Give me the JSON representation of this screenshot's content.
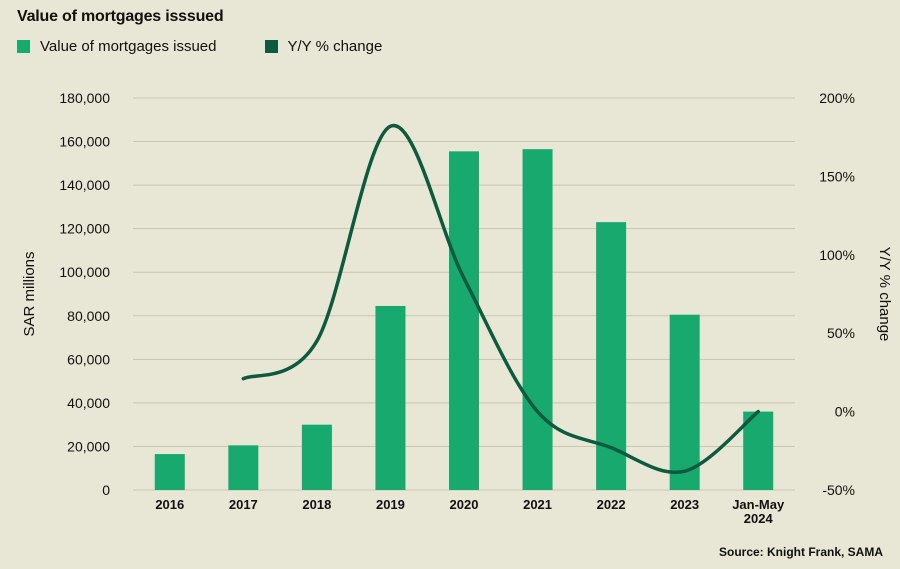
{
  "header": {
    "title": "Value of mortgages isssued"
  },
  "legend": [
    {
      "label": "Value of mortgages issued",
      "color": "#18a96e"
    },
    {
      "label": "Y/Y % change",
      "color": "#0e5a3f"
    }
  ],
  "source": "Source: Knight Frank, SAMA",
  "chart_data": {
    "type": "bar+line",
    "title": "Value of mortgages isssued",
    "categories": [
      "2016",
      "2017",
      "2018",
      "2019",
      "2020",
      "2021",
      "2022",
      "2023",
      "Jan-May 2024"
    ],
    "category_lines": [
      [
        "2016"
      ],
      [
        "2017"
      ],
      [
        "2018"
      ],
      [
        "2019"
      ],
      [
        "2020"
      ],
      [
        "2021"
      ],
      [
        "2022"
      ],
      [
        "2023"
      ],
      [
        "Jan-May",
        "2024"
      ]
    ],
    "series": [
      {
        "name": "Value of mortgages issued",
        "type": "bar",
        "axis": "left",
        "color": "#18a96e",
        "values": [
          16500,
          20500,
          30000,
          84500,
          155500,
          156500,
          123000,
          80500,
          36000
        ]
      },
      {
        "name": "Y/Y % change",
        "type": "line",
        "axis": "right",
        "color": "#0e5a3f",
        "values": [
          null,
          21,
          45,
          182,
          85,
          0,
          -23,
          -38,
          0
        ]
      }
    ],
    "ylabel": "SAR millions",
    "y2label": "Y/Y % change",
    "ylim": [
      0,
      180000
    ],
    "y2lim": [
      -50,
      200
    ],
    "yticks": [
      0,
      20000,
      40000,
      60000,
      80000,
      100000,
      120000,
      140000,
      160000,
      180000
    ],
    "yticklabels": [
      "0",
      "20,000",
      "40,000",
      "60,000",
      "80,000",
      "100,000",
      "120,000",
      "140,000",
      "160,000",
      "180,000"
    ],
    "y2ticks": [
      -50,
      0,
      50,
      100,
      150,
      200
    ],
    "y2ticklabels": [
      "-50%",
      "0%",
      "50%",
      "100%",
      "150%",
      "200%"
    ],
    "grid": true
  }
}
